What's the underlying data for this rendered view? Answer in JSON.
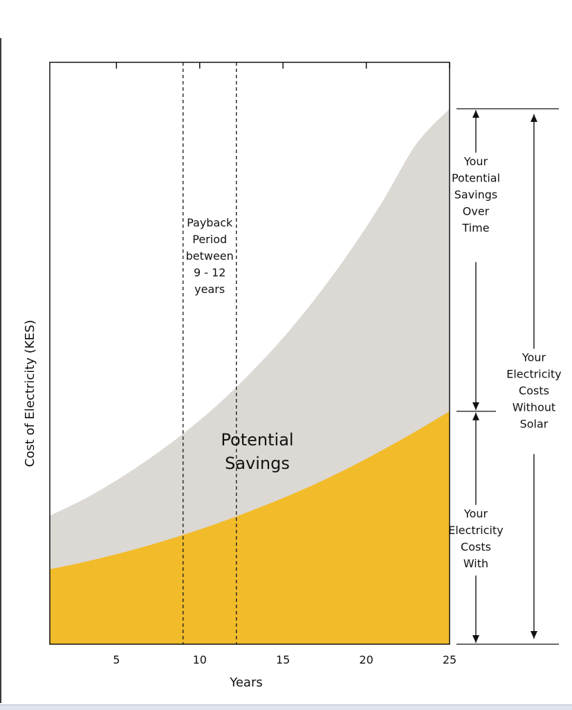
{
  "chart_data": {
    "type": "area",
    "xlabel": "Years",
    "ylabel": "Cost of Electricity (KES)",
    "xlim": [
      1,
      25
    ],
    "ylim": [
      0,
      100
    ],
    "x_ticks": [
      5,
      10,
      15,
      20,
      25
    ],
    "x_tick_labels": [
      "5",
      "10",
      "15",
      "20",
      "25"
    ],
    "grid": false,
    "series": [
      {
        "name": "",
        "color": "#f2bb2a",
        "x": [
          1,
          3,
          5,
          7,
          9,
          11,
          13,
          15,
          17,
          19,
          21,
          23,
          25
        ],
        "values": [
          14,
          15.3,
          16.8,
          18.5,
          20.4,
          22.5,
          24.8,
          27.3,
          30,
          33,
          36.3,
          39.8,
          43.5
        ]
      },
      {
        "name": "",
        "color": "#dcd8d3",
        "x": [
          1,
          3,
          5,
          7,
          9,
          11,
          13,
          15,
          17,
          19,
          21,
          23,
          25
        ],
        "values": [
          24,
          27,
          30.6,
          34.7,
          39.3,
          44.5,
          50.5,
          57.2,
          64.8,
          73.3,
          82.8,
          93.4,
          100
        ]
      }
    ],
    "payback": {
      "start_year": 9,
      "end_year": 12.2,
      "label": [
        "Payback",
        "Period",
        "between",
        "9 - 12",
        "years"
      ]
    },
    "area_label": [
      "Potential",
      "Savings"
    ],
    "annotations": [
      {
        "id": "savings",
        "lines": [
          "Your",
          "Potential",
          "Savings",
          "Over",
          "Time"
        ]
      },
      {
        "id": "with-solar",
        "lines": [
          "Your",
          "Electricity",
          "Costs",
          "With"
        ]
      },
      {
        "id": "without-solar",
        "lines": [
          "Your",
          "Electricity",
          "Costs",
          "Without",
          "Solar"
        ]
      }
    ]
  }
}
